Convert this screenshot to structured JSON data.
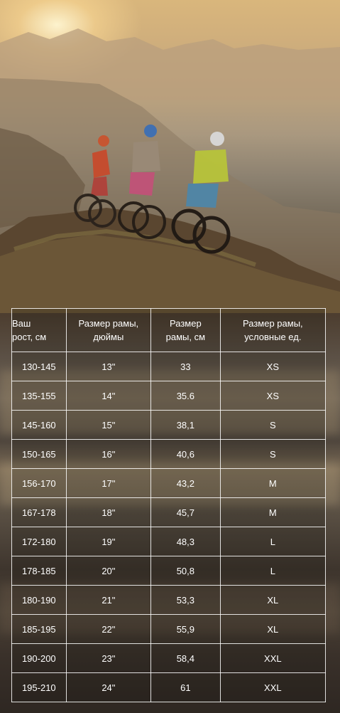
{
  "table": {
    "headers": [
      [
        "Ваш",
        "рост, см"
      ],
      [
        "Размер рамы,",
        "дюймы"
      ],
      [
        "Размер",
        "рамы, см"
      ],
      [
        "Размер рамы,",
        "условные ед."
      ]
    ],
    "rows": [
      [
        "130-145",
        "13\"",
        "33",
        "XS"
      ],
      [
        "135-155",
        "14\"",
        "35.6",
        "XS"
      ],
      [
        "145-160",
        "15\"",
        "38,1",
        "S"
      ],
      [
        "150-165",
        "16\"",
        "40,6",
        "S"
      ],
      [
        "156-170",
        "17\"",
        "43,2",
        "M"
      ],
      [
        "167-178",
        "18\"",
        "45,7",
        "M"
      ],
      [
        "172-180",
        "19\"",
        "48,3",
        "L"
      ],
      [
        "178-185",
        "20\"",
        "50,8",
        "L"
      ],
      [
        "180-190",
        "21\"",
        "53,3",
        "XL"
      ],
      [
        "185-195",
        "22\"",
        "55,9",
        "XL"
      ],
      [
        "190-200",
        "23\"",
        "58,4",
        "XXL"
      ],
      [
        "195-210",
        "24\"",
        "61",
        "XXL"
      ]
    ]
  }
}
